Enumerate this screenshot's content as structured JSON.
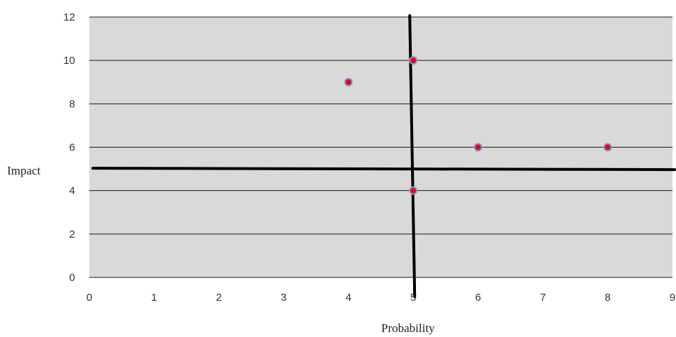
{
  "chart_data": {
    "type": "scatter",
    "title": "",
    "xlabel": "Probability",
    "ylabel": "Impact",
    "xlim": [
      0,
      9
    ],
    "ylim": [
      0,
      12
    ],
    "xticks": [
      "0",
      "1",
      "2",
      "3",
      "4",
      "5",
      "6",
      "7",
      "8",
      "9"
    ],
    "yticks": [
      "0",
      "2",
      "4",
      "6",
      "8",
      "10",
      "12"
    ],
    "grid": "horizontal",
    "points": [
      {
        "x": 4,
        "y": 9
      },
      {
        "x": 5,
        "y": 10
      },
      {
        "x": 6,
        "y": 6
      },
      {
        "x": 8,
        "y": 6
      },
      {
        "x": 5,
        "y": 4
      }
    ],
    "quadrant_lines": {
      "x": 5,
      "y": 5
    }
  },
  "colors": {
    "plot_background": "#d9d9d9",
    "grid": "#1a1a1a",
    "marker_fill": "#e8001c",
    "marker_edge": "#7b9fd4",
    "quadrant_line": "#000000"
  }
}
